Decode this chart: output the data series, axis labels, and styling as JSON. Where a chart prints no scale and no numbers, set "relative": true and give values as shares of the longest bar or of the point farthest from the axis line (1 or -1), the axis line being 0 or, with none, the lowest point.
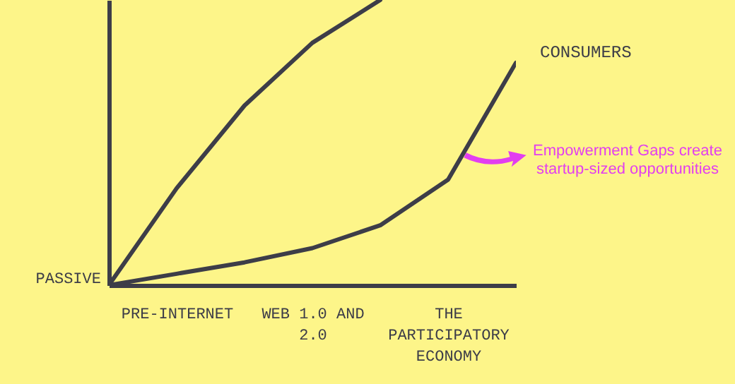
{
  "chart_data": {
    "type": "line",
    "relative": true,
    "ylabel": "PASSIVE",
    "categories": [
      null,
      "PRE-INTERNET",
      null,
      "WEB 1.0 AND 2.0",
      null,
      "THE PARTICIPATORY ECONOMY",
      null
    ],
    "series": [
      {
        "color": "#3d3d48",
        "values": [
          0,
          0.34,
          0.63,
          0.85,
          1,
          null,
          null
        ]
      },
      {
        "name": "CONSUMERS",
        "color": "#3d3d48",
        "values": [
          0,
          0.04,
          0.08,
          0.13,
          0.21,
          0.37,
          0.78
        ]
      }
    ],
    "annotations": [
      "Empowerment Gaps create startup-sized opportunities"
    ],
    "grid": false,
    "line_style": "solid"
  }
}
